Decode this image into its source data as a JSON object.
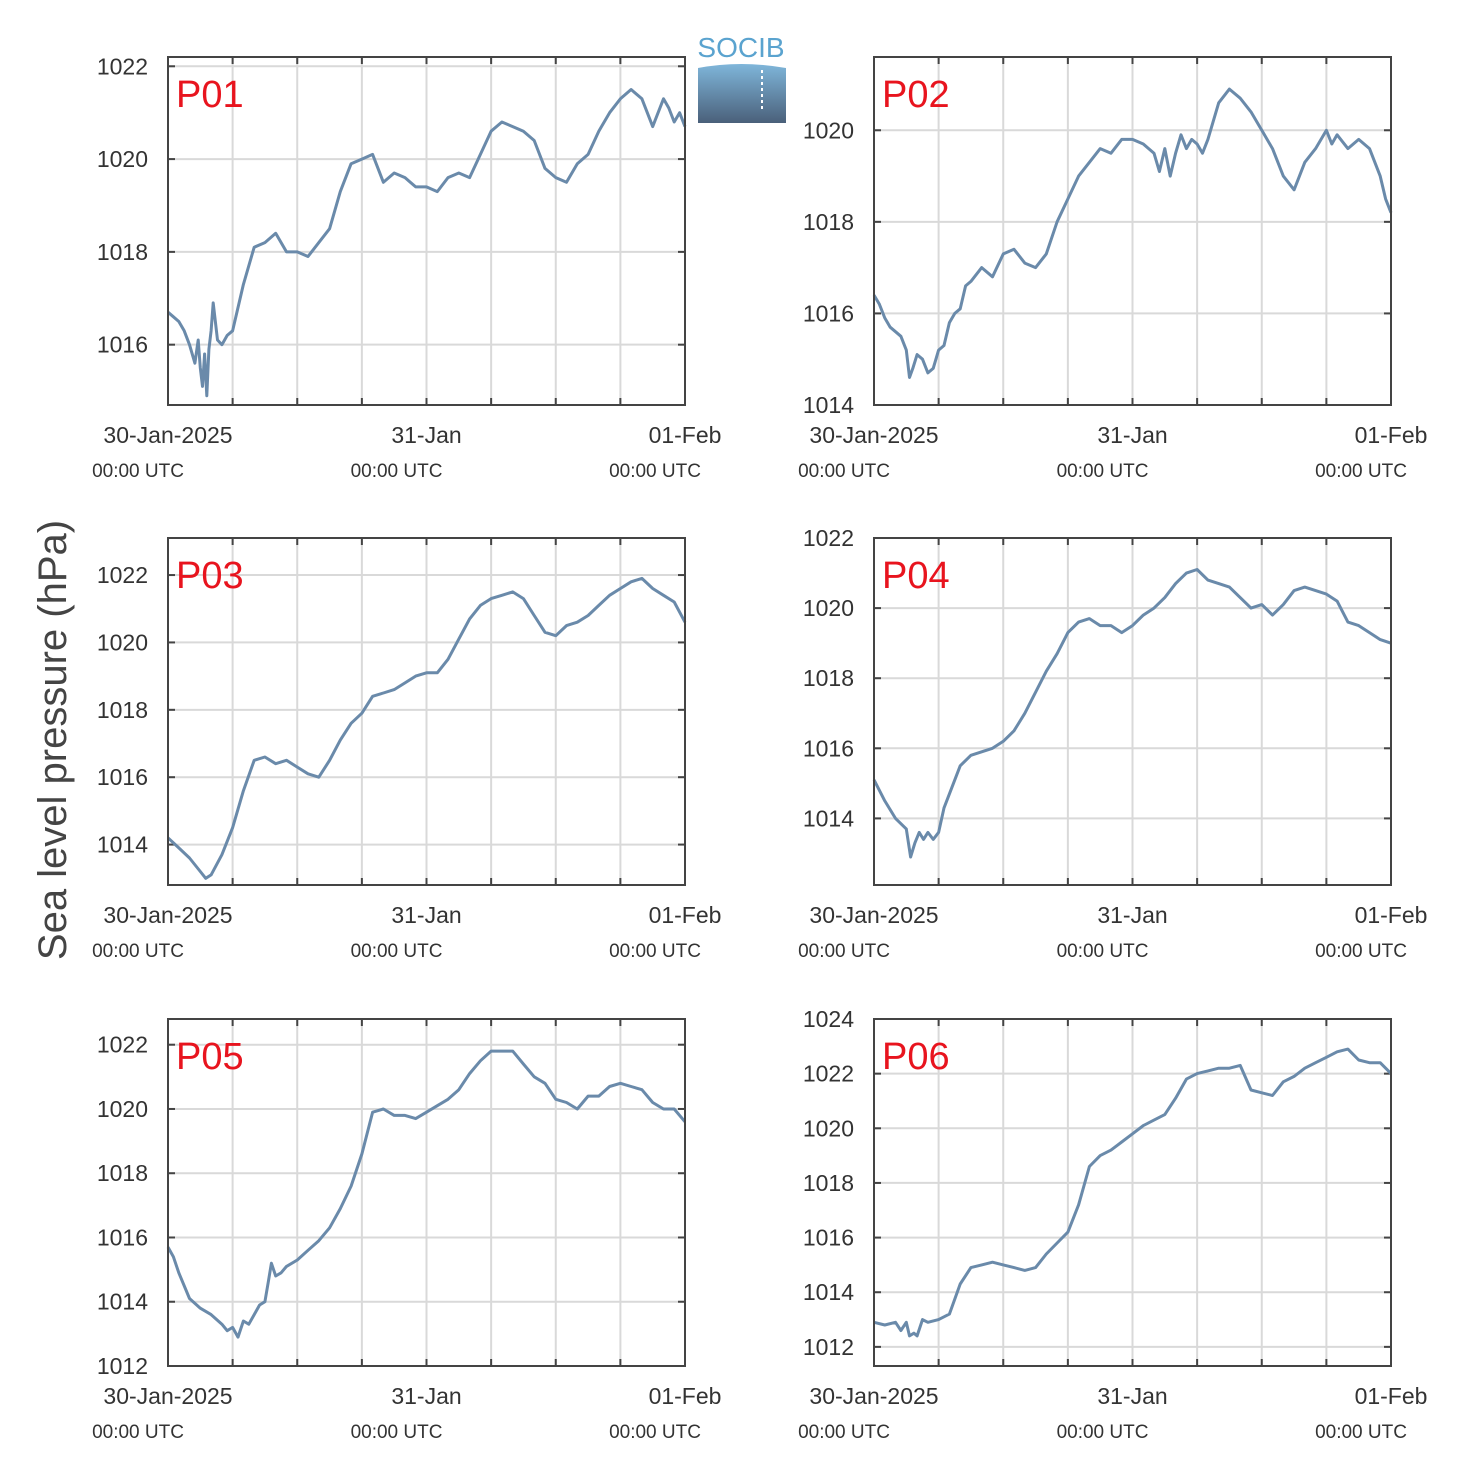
{
  "ylabel": "Sea level pressure (hPa)",
  "logo": {
    "text": "SOCIB"
  },
  "colors": {
    "line": "#6a8aaa",
    "label": "#e8141e",
    "grid": "#d9d9d9",
    "axis": "#444444",
    "logo_top": "#6aaad2",
    "logo_bottom": "#4a607a"
  },
  "x_ticks": [
    {
      "main": "30-Jan-2025",
      "sub": "00:00 UTC"
    },
    {
      "main": "31-Jan",
      "sub": "00:00 UTC"
    },
    {
      "main": "01-Feb",
      "sub": "00:00 UTC"
    }
  ],
  "chart_data": [
    {
      "type": "line",
      "label": "P01",
      "xlim": [
        0,
        48
      ],
      "ylim": [
        1014.7,
        1022.2
      ],
      "yticks": [
        1016,
        1018,
        1020,
        1022
      ],
      "x": [
        0,
        0.5,
        1,
        1.5,
        2,
        2.5,
        2.8,
        3,
        3.2,
        3.4,
        3.6,
        3.8,
        4,
        4.2,
        4.6,
        5,
        5.5,
        6,
        7,
        8,
        9,
        10,
        11,
        12,
        13,
        14,
        15,
        16,
        17,
        18,
        19,
        20,
        21,
        22,
        22.5,
        23,
        24,
        25,
        26,
        27,
        28,
        29,
        30,
        31,
        32,
        33,
        34,
        35,
        36,
        37,
        38,
        39,
        40,
        41,
        42,
        43,
        44,
        45,
        46,
        46.5,
        47,
        47.5,
        48
      ],
      "y": [
        1016.7,
        1016.6,
        1016.5,
        1016.3,
        1016.0,
        1015.6,
        1016.1,
        1015.5,
        1015.1,
        1015.8,
        1014.9,
        1015.9,
        1016.3,
        1016.9,
        1016.1,
        1016.0,
        1016.2,
        1016.3,
        1017.3,
        1018.1,
        1018.2,
        1018.4,
        1018.0,
        1018.0,
        1017.9,
        1018.2,
        1018.5,
        1019.3,
        1019.9,
        1020.0,
        1020.1,
        1019.5,
        1019.7,
        1019.6,
        1019.5,
        1019.4,
        1019.4,
        1019.3,
        1019.6,
        1019.7,
        1019.6,
        1020.1,
        1020.6,
        1020.8,
        1020.7,
        1020.6,
        1020.4,
        1019.8,
        1019.6,
        1019.5,
        1019.9,
        1020.1,
        1020.6,
        1021.0,
        1021.3,
        1021.5,
        1021.3,
        1020.7,
        1021.3,
        1021.1,
        1020.8,
        1021.0,
        1020.7
      ]
    },
    {
      "type": "line",
      "label": "P02",
      "xlim": [
        0,
        48
      ],
      "ylim": [
        1014,
        1021.6
      ],
      "yticks": [
        1014,
        1016,
        1018,
        1020
      ],
      "x": [
        0,
        0.5,
        1,
        1.5,
        2,
        2.5,
        3,
        3.3,
        3.6,
        4,
        4.5,
        5,
        5.5,
        6,
        6.5,
        7,
        7.5,
        8,
        8.5,
        9,
        10,
        11,
        12,
        13,
        14,
        15,
        16,
        17,
        18,
        19,
        20,
        21,
        22,
        23,
        24,
        25,
        26,
        26.5,
        27,
        27.5,
        28,
        28.5,
        29,
        29.5,
        30,
        30.5,
        31,
        32,
        33,
        34,
        35,
        36,
        37,
        38,
        39,
        40,
        41,
        42,
        42.5,
        43,
        44,
        45,
        46,
        47,
        47.5,
        48
      ],
      "y": [
        1016.4,
        1016.2,
        1015.9,
        1015.7,
        1015.6,
        1015.5,
        1015.2,
        1014.6,
        1014.8,
        1015.1,
        1015.0,
        1014.7,
        1014.8,
        1015.2,
        1015.3,
        1015.8,
        1016.0,
        1016.1,
        1016.6,
        1016.7,
        1017.0,
        1016.8,
        1017.3,
        1017.4,
        1017.1,
        1017.0,
        1017.3,
        1018.0,
        1018.5,
        1019.0,
        1019.3,
        1019.6,
        1019.5,
        1019.8,
        1019.8,
        1019.7,
        1019.5,
        1019.1,
        1019.6,
        1019.0,
        1019.5,
        1019.9,
        1019.6,
        1019.8,
        1019.7,
        1019.5,
        1019.8,
        1020.6,
        1020.9,
        1020.7,
        1020.4,
        1020.0,
        1019.6,
        1019.0,
        1018.7,
        1019.3,
        1019.6,
        1020.0,
        1019.7,
        1019.9,
        1019.6,
        1019.8,
        1019.6,
        1019.0,
        1018.5,
        1018.2
      ]
    },
    {
      "type": "line",
      "label": "P03",
      "xlim": [
        0,
        48
      ],
      "ylim": [
        1012.8,
        1023.1
      ],
      "yticks": [
        1014,
        1016,
        1018,
        1020,
        1022
      ],
      "x": [
        0,
        1,
        2,
        3,
        3.5,
        4,
        5,
        6,
        7,
        8,
        9,
        10,
        11,
        12,
        13,
        14,
        15,
        16,
        17,
        18,
        19,
        20,
        21,
        22,
        23,
        24,
        25,
        26,
        27,
        28,
        29,
        30,
        31,
        32,
        33,
        34,
        35,
        36,
        37,
        38,
        39,
        40,
        41,
        42,
        43,
        44,
        45,
        46,
        47,
        48
      ],
      "y": [
        1014.2,
        1013.9,
        1013.6,
        1013.2,
        1013.0,
        1013.1,
        1013.7,
        1014.5,
        1015.6,
        1016.5,
        1016.6,
        1016.4,
        1016.5,
        1016.3,
        1016.1,
        1016.0,
        1016.5,
        1017.1,
        1017.6,
        1017.9,
        1018.4,
        1018.5,
        1018.6,
        1018.8,
        1019.0,
        1019.1,
        1019.1,
        1019.5,
        1020.1,
        1020.7,
        1021.1,
        1021.3,
        1021.4,
        1021.5,
        1021.3,
        1020.8,
        1020.3,
        1020.2,
        1020.5,
        1020.6,
        1020.8,
        1021.1,
        1021.4,
        1021.6,
        1021.8,
        1021.9,
        1021.6,
        1021.4,
        1021.2,
        1020.6
      ]
    },
    {
      "type": "line",
      "label": "P04",
      "xlim": [
        0,
        48
      ],
      "ylim": [
        1012.1,
        1022.0
      ],
      "yticks": [
        1014,
        1016,
        1018,
        1020,
        1022
      ],
      "x": [
        0,
        1,
        2,
        3,
        3.4,
        3.8,
        4.2,
        4.6,
        5,
        5.5,
        6,
        6.5,
        7,
        8,
        9,
        10,
        11,
        12,
        13,
        14,
        15,
        16,
        17,
        18,
        19,
        20,
        21,
        22,
        23,
        24,
        25,
        26,
        27,
        28,
        29,
        30,
        31,
        32,
        33,
        34,
        35,
        36,
        37,
        38,
        39,
        40,
        41,
        42,
        43,
        44,
        45,
        46,
        47,
        48
      ],
      "y": [
        1015.1,
        1014.5,
        1014.0,
        1013.7,
        1012.9,
        1013.3,
        1013.6,
        1013.4,
        1013.6,
        1013.4,
        1013.6,
        1014.3,
        1014.7,
        1015.5,
        1015.8,
        1015.9,
        1016.0,
        1016.2,
        1016.5,
        1017.0,
        1017.6,
        1018.2,
        1018.7,
        1019.3,
        1019.6,
        1019.7,
        1019.5,
        1019.5,
        1019.3,
        1019.5,
        1019.8,
        1020.0,
        1020.3,
        1020.7,
        1021.0,
        1021.1,
        1020.8,
        1020.7,
        1020.6,
        1020.3,
        1020.0,
        1020.1,
        1019.8,
        1020.1,
        1020.5,
        1020.6,
        1020.5,
        1020.4,
        1020.2,
        1019.6,
        1019.5,
        1019.3,
        1019.1,
        1019.0
      ]
    },
    {
      "type": "line",
      "label": "P05",
      "xlim": [
        0,
        48
      ],
      "ylim": [
        1012,
        1022.8
      ],
      "yticks": [
        1012,
        1014,
        1016,
        1018,
        1020,
        1022
      ],
      "x": [
        0,
        0.5,
        1,
        2,
        3,
        4,
        5,
        5.5,
        6,
        6.5,
        7,
        7.5,
        8,
        8.5,
        9,
        9.3,
        9.6,
        10,
        10.5,
        11,
        12,
        13,
        14,
        15,
        16,
        17,
        18,
        19,
        20,
        21,
        22,
        23,
        24,
        25,
        26,
        27,
        28,
        29,
        30,
        31,
        32,
        33,
        34,
        35,
        36,
        37,
        38,
        39,
        40,
        41,
        42,
        43,
        44,
        45,
        46,
        47,
        48
      ],
      "y": [
        1015.7,
        1015.4,
        1014.9,
        1014.1,
        1013.8,
        1013.6,
        1013.3,
        1013.1,
        1013.2,
        1012.9,
        1013.4,
        1013.3,
        1013.6,
        1013.9,
        1014.0,
        1014.6,
        1015.2,
        1014.8,
        1014.9,
        1015.1,
        1015.3,
        1015.6,
        1015.9,
        1016.3,
        1016.9,
        1017.6,
        1018.6,
        1019.9,
        1020.0,
        1019.8,
        1019.8,
        1019.7,
        1019.9,
        1020.1,
        1020.3,
        1020.6,
        1021.1,
        1021.5,
        1021.8,
        1021.8,
        1021.8,
        1021.4,
        1021.0,
        1020.8,
        1020.3,
        1020.2,
        1020.0,
        1020.4,
        1020.4,
        1020.7,
        1020.8,
        1020.7,
        1020.6,
        1020.2,
        1020.0,
        1020.0,
        1019.6
      ]
    },
    {
      "type": "line",
      "label": "P06",
      "xlim": [
        0,
        48
      ],
      "ylim": [
        1011.3,
        1024
      ],
      "yticks": [
        1012,
        1014,
        1016,
        1018,
        1020,
        1022,
        1024
      ],
      "x": [
        0,
        1,
        2,
        2.5,
        3,
        3.3,
        3.7,
        4,
        4.5,
        5,
        6,
        7,
        8,
        9,
        10,
        11,
        12,
        13,
        14,
        15,
        16,
        17,
        18,
        19,
        20,
        21,
        22,
        23,
        24,
        25,
        26,
        27,
        28,
        29,
        30,
        31,
        32,
        33,
        34,
        35,
        36,
        37,
        38,
        39,
        40,
        41,
        42,
        43,
        44,
        45,
        46,
        47,
        48
      ],
      "y": [
        1012.9,
        1012.8,
        1012.9,
        1012.6,
        1012.9,
        1012.4,
        1012.5,
        1012.4,
        1013.0,
        1012.9,
        1013.0,
        1013.2,
        1014.3,
        1014.9,
        1015.0,
        1015.1,
        1015.0,
        1014.9,
        1014.8,
        1014.9,
        1015.4,
        1015.8,
        1016.2,
        1017.2,
        1018.6,
        1019.0,
        1019.2,
        1019.5,
        1019.8,
        1020.1,
        1020.3,
        1020.5,
        1021.1,
        1021.8,
        1022.0,
        1022.1,
        1022.2,
        1022.2,
        1022.3,
        1021.4,
        1021.3,
        1021.2,
        1021.7,
        1021.9,
        1022.2,
        1022.4,
        1022.6,
        1022.8,
        1022.9,
        1022.5,
        1022.4,
        1022.4,
        1022.0
      ]
    }
  ]
}
